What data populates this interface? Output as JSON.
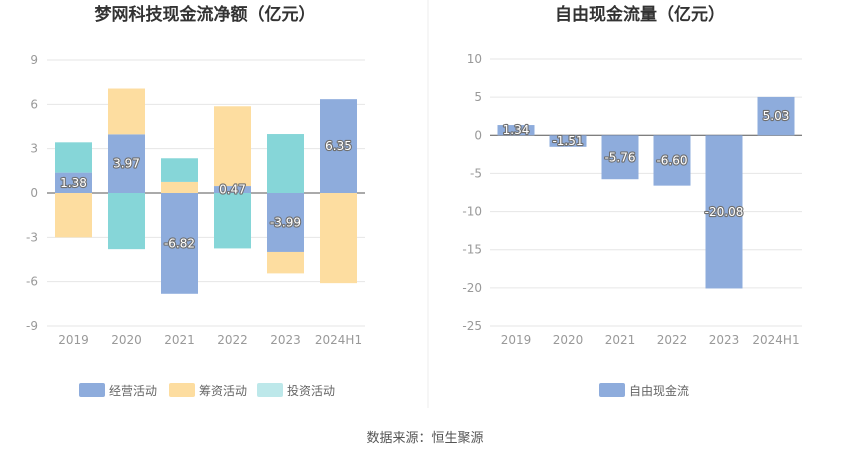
{
  "chart_data": [
    {
      "type": "bar",
      "title": "梦网科技现金流净额（亿元）",
      "categories": [
        "2019",
        "2020",
        "2021",
        "2022",
        "2023",
        "2024H1"
      ],
      "ylim": [
        -9,
        9
      ],
      "yticks": [
        9,
        6,
        3,
        0,
        -3,
        -6,
        -9
      ],
      "stacked": true,
      "grid": true,
      "legend_position": "bottom",
      "series": [
        {
          "name": "经营活动",
          "color": "#8eacdc",
          "values": [
            1.38,
            3.97,
            -6.82,
            0.47,
            -3.99,
            6.35
          ]
        },
        {
          "name": "筹资活动",
          "color": "#fddda0",
          "values": [
            -3.0,
            3.1,
            0.75,
            5.4,
            -1.45,
            -6.1
          ]
        },
        {
          "name": "投资活动",
          "color": "#86d6d8",
          "values": [
            2.05,
            -3.8,
            1.6,
            -3.75,
            3.99,
            0
          ]
        }
      ],
      "data_labels": [
        "1.38",
        "3.97",
        "-6.82",
        "0.47",
        "-3.99",
        "6.35"
      ]
    },
    {
      "type": "bar",
      "title": "自由现金流量（亿元）",
      "categories": [
        "2019",
        "2020",
        "2021",
        "2022",
        "2023",
        "2024H1"
      ],
      "ylim": [
        -25,
        10
      ],
      "yticks": [
        10,
        5,
        0,
        -5,
        -10,
        -15,
        -20,
        -25
      ],
      "grid": true,
      "legend_position": "bottom",
      "series": [
        {
          "name": "自由现金流",
          "color": "#8eacdc",
          "values": [
            1.34,
            -1.51,
            -5.76,
            -6.6,
            -20.08,
            5.03
          ]
        }
      ],
      "data_labels": [
        "1.34",
        "-1.51",
        "-5.76",
        "-6.60",
        "-20.08",
        "5.03"
      ]
    }
  ],
  "footer": {
    "source": "数据来源：恒生聚源"
  },
  "colors": {
    "grid": "#e6e6e6",
    "axis": "#555555",
    "tick": "#999999",
    "divider": "#eeeeee"
  }
}
